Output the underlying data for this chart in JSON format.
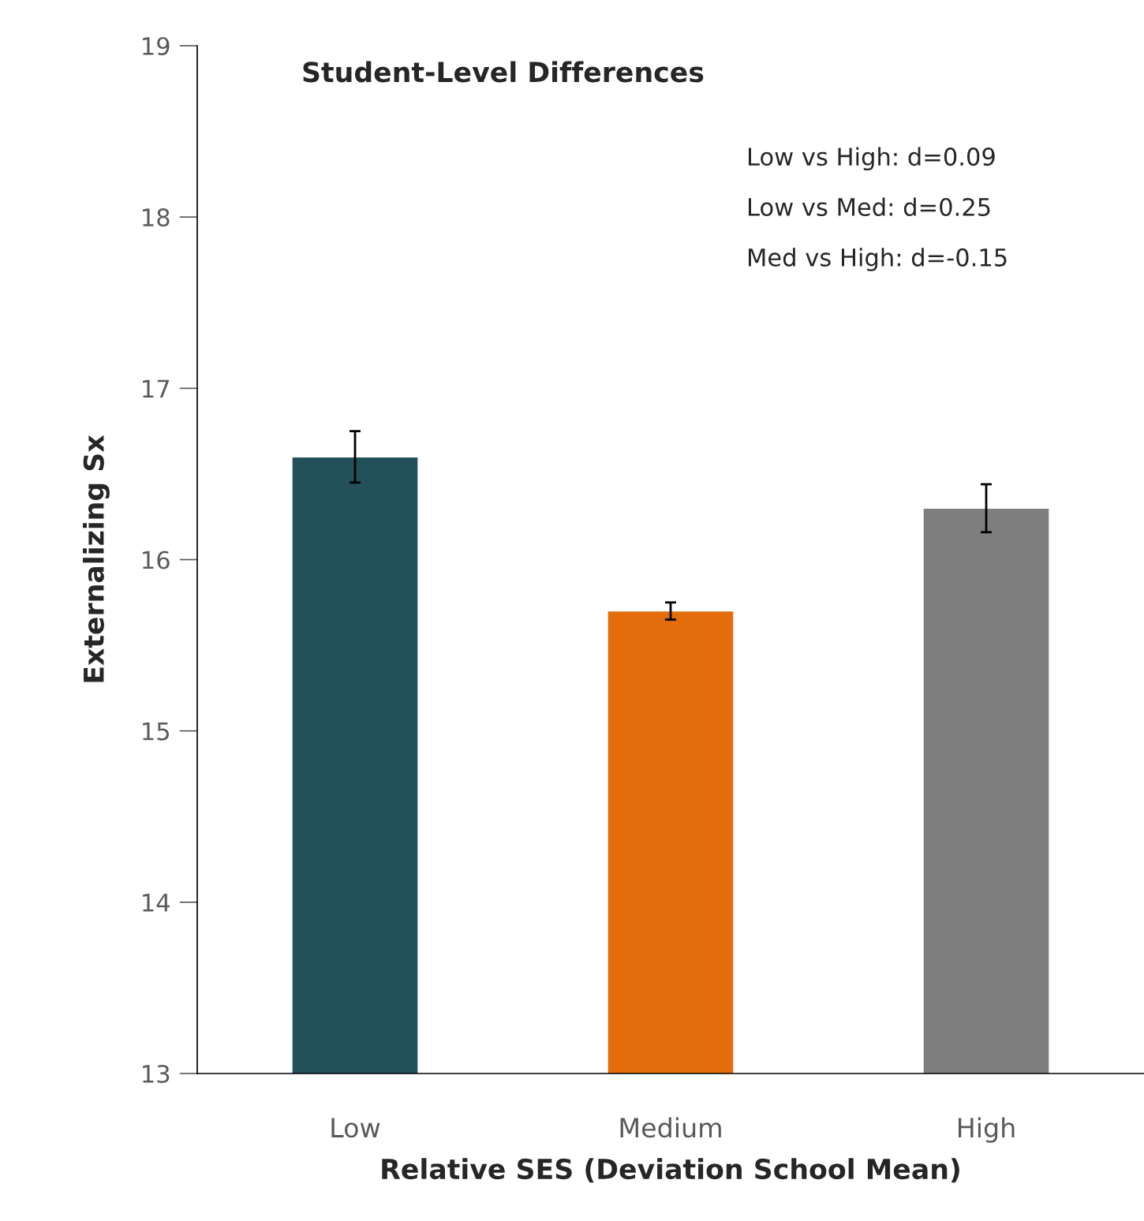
{
  "chart_data": {
    "type": "bar",
    "title": "Student-Level Differences",
    "xlabel": "Relative SES (Deviation School Mean)",
    "ylabel": "Externalizing Sx",
    "categories": [
      "Low",
      "Medium",
      "High"
    ],
    "values": [
      16.6,
      15.7,
      16.3
    ],
    "colors": [
      "#22505b",
      "#e36c0b",
      "#7f7f7f"
    ],
    "errors": [
      0.15,
      0.05,
      0.14
    ],
    "ylim": [
      13,
      19
    ],
    "yticks": [
      13,
      14,
      15,
      16,
      17,
      18,
      19
    ],
    "grid": false,
    "legend": false,
    "annotations": [
      "Low vs High: d=0.09",
      "Low vs Med: d=0.25",
      "Med vs High: d=-0.15"
    ]
  }
}
